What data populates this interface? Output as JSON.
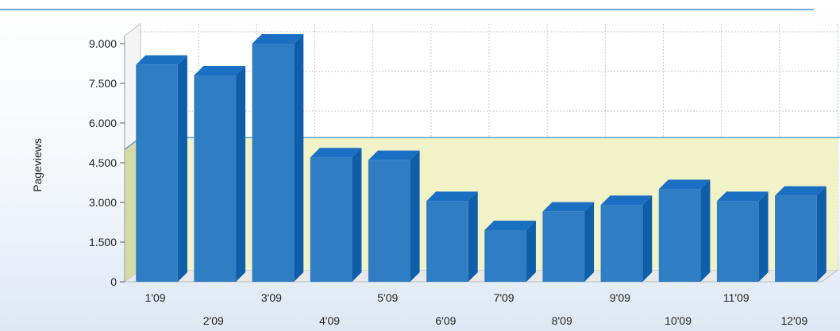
{
  "chart_data": {
    "type": "bar",
    "title": "",
    "xlabel": "",
    "ylabel": "Pageviews",
    "ylim": [
      0,
      9000
    ],
    "yticks": [
      0,
      1500,
      3000,
      4500,
      6000,
      7500,
      9000
    ],
    "ytick_labels": [
      "0",
      "1.500",
      "3.000",
      "4.500",
      "6.000",
      "7.500",
      "9.000"
    ],
    "categories": [
      "1'09",
      "2'09",
      "3'09",
      "4'09",
      "5'09",
      "6'09",
      "7'09",
      "8'09",
      "9'09",
      "10'09",
      "11'09",
      "12'09"
    ],
    "values": [
      8200,
      7800,
      9000,
      4700,
      4600,
      3050,
      1950,
      2650,
      2900,
      3500,
      3050,
      3250
    ],
    "highlight_band": [
      0,
      5000
    ],
    "grid": true,
    "style": "3d",
    "colors": {
      "bar_front": "#2f7ec4",
      "bar_top": "#1a6fc2",
      "bar_side": "#0f5eaa",
      "band_fill": "#f1f2c8",
      "band_edge": "#5aa3c8",
      "grid": "#c8c8c8",
      "top_rule": "#4a8ec0"
    }
  }
}
